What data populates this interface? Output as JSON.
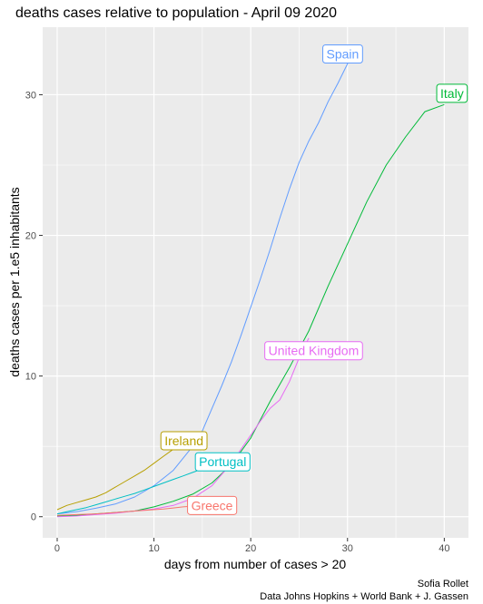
{
  "chart_data": {
    "type": "line",
    "title": "deaths cases relative to population - April 09 2020",
    "xlabel": "days from number of cases >  20",
    "ylabel": "deaths cases per 1.e5 inhabitants",
    "xlim": [
      -1.5,
      42.5
    ],
    "ylim": [
      -1.5,
      34.8
    ],
    "xticks": [
      0,
      10,
      20,
      30,
      40
    ],
    "yticks": [
      0,
      10,
      20,
      30
    ],
    "grid": true,
    "legend": "direct labels at series ends",
    "caption": [
      "Sofia Rollet",
      "Data Johns Hopkins + World Bank + J. Gassen"
    ],
    "series": [
      {
        "name": "Spain",
        "color": "#619cff",
        "x": [
          0,
          2,
          4,
          6,
          8,
          10,
          12,
          14,
          15,
          16,
          17,
          18,
          19,
          20,
          21,
          22,
          23,
          24,
          25,
          26,
          27,
          28,
          29,
          30,
          31
        ],
        "y": [
          0.2,
          0.35,
          0.6,
          0.9,
          1.4,
          2.2,
          3.3,
          5.0,
          6.1,
          7.7,
          9.3,
          11.0,
          12.9,
          14.9,
          16.9,
          19.0,
          21.2,
          23.3,
          25.2,
          26.7,
          28.0,
          29.5,
          30.8,
          32.2,
          33.4
        ],
        "label": "Spain",
        "label_at": [
          29.5,
          32.9
        ]
      },
      {
        "name": "Italy",
        "color": "#00ba38",
        "x": [
          0,
          2,
          4,
          6,
          8,
          10,
          12,
          14,
          16,
          18,
          20,
          22,
          24,
          26,
          28,
          30,
          32,
          34,
          36,
          38,
          40
        ],
        "y": [
          0.05,
          0.1,
          0.2,
          0.3,
          0.4,
          0.7,
          1.1,
          1.6,
          2.4,
          3.7,
          5.6,
          8.2,
          10.6,
          13.2,
          16.4,
          19.4,
          22.4,
          25.0,
          27.0,
          28.8,
          29.3
        ],
        "label": "Italy",
        "label_at": [
          40.8,
          30.1
        ]
      },
      {
        "name": "United Kingdom",
        "color": "#e76bf3",
        "x": [
          0,
          2,
          4,
          6,
          8,
          10,
          12,
          14,
          16,
          18,
          19,
          20,
          21,
          22,
          23,
          24,
          25,
          26
        ],
        "y": [
          0.0,
          0.05,
          0.15,
          0.25,
          0.4,
          0.55,
          0.8,
          1.3,
          2.2,
          3.8,
          4.8,
          5.8,
          6.8,
          7.7,
          8.3,
          9.6,
          11.3,
          12.7
        ],
        "label": "United Kingdom",
        "label_at": [
          26.5,
          11.8
        ]
      },
      {
        "name": "Ireland",
        "color": "#b79f00",
        "x": [
          0,
          1,
          2,
          3,
          4,
          5,
          6,
          7,
          8,
          9,
          10,
          11,
          12,
          13,
          14
        ],
        "y": [
          0.5,
          0.8,
          1.0,
          1.2,
          1.4,
          1.7,
          2.1,
          2.5,
          2.9,
          3.3,
          3.8,
          4.3,
          4.8,
          5.3,
          5.8
        ],
        "label": "Ireland",
        "label_at": [
          13.1,
          5.4
        ]
      },
      {
        "name": "Portugal",
        "color": "#00bfc4",
        "x": [
          0,
          1,
          2,
          3,
          4,
          5,
          6,
          7,
          8,
          9,
          10,
          11,
          12,
          13,
          14,
          15,
          16
        ],
        "y": [
          0.2,
          0.35,
          0.5,
          0.65,
          0.85,
          1.05,
          1.25,
          1.45,
          1.65,
          1.9,
          2.15,
          2.4,
          2.65,
          2.9,
          3.15,
          3.4,
          3.7
        ],
        "label": "Portugal",
        "label_at": [
          17.1,
          3.9
        ]
      },
      {
        "name": "Greece",
        "color": "#f8766d",
        "x": [
          0,
          2,
          4,
          6,
          8,
          10,
          11,
          12,
          13,
          14
        ],
        "y": [
          0.1,
          0.15,
          0.2,
          0.3,
          0.4,
          0.5,
          0.55,
          0.62,
          0.7,
          0.75
        ],
        "label": "Greece",
        "label_at": [
          16.0,
          0.8
        ]
      }
    ]
  }
}
